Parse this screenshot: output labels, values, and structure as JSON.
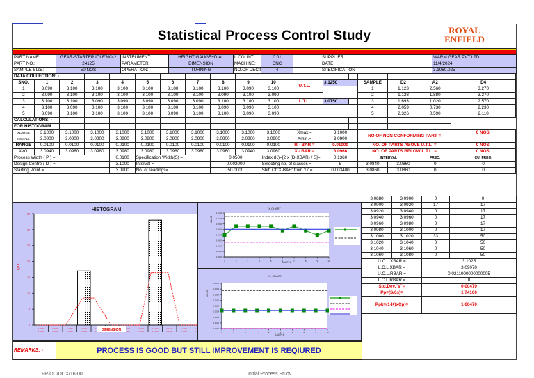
{
  "header": {
    "title": "Statistical Process Control Study",
    "logo_line1": "ROYAL",
    "logo_line2": "ENFIELD"
  },
  "info": {
    "part_name_label": "PART NAME:",
    "part_name": "GEAR-STARTER IDLE'NO-2",
    "part_no_label": "PART NO.:",
    "part_no": "24125",
    "sample_size_label": "SAMPLE SIZE:",
    "sample_size": "50 NOS",
    "instrument_label": "INSTRUMENT:",
    "instrument": "HEIGHT GAUGE+DIAL",
    "parameter_label": "PARAMETER:",
    "parameter": "DIMENSION",
    "operation_label": "OPERATION:",
    "operation": "TURNING",
    "lcount_label": "L.COUNT",
    "lcount": "0.01",
    "machine_label": "MACHINE:",
    "machine": "CNC",
    "decimals_label": "NO.OF DECIMALS:",
    "decimals": "4",
    "supplier_label": "SUPPLIER",
    "supplier": "WARM GEAR PVT LTD",
    "date_label": "DATE",
    "date": "11/4/2024",
    "spec_label": "SPECIFICATION",
    "spec": "3.10±0.025"
  },
  "data_collection": {
    "label": "DATA COLLECTION: -",
    "sno_label": "SNO.",
    "columns": [
      "1",
      "2",
      "3",
      "4",
      "5",
      "6",
      "7",
      "8",
      "9",
      "10"
    ],
    "rows": [
      {
        "sno": "1",
        "values": [
          "3.090",
          "3.100",
          "3.100",
          "3.100",
          "3.100",
          "3.100",
          "3.100",
          "3.100",
          "3.090",
          "3.100"
        ]
      },
      {
        "sno": "2",
        "values": [
          "3.090",
          "3.100",
          "3.100",
          "3.100",
          "3.100",
          "3.100",
          "3.100",
          "3.090",
          "3.100",
          "3.090"
        ]
      },
      {
        "sno": "3",
        "values": [
          "3.100",
          "3.100",
          "3.090",
          "3.090",
          "3.090",
          "3.090",
          "3.090",
          "3.100",
          "3.100",
          "3.100"
        ]
      },
      {
        "sno": "4",
        "values": [
          "3.100",
          "3.090",
          "3.100",
          "3.100",
          "3.100",
          "3.100",
          "3.100",
          "3.090",
          "3.090",
          "3.100"
        ]
      },
      {
        "sno": "5",
        "values": [
          "3.090",
          "3.100",
          "3.100",
          "3.100",
          "3.100",
          "3.090",
          "3.100",
          "3.100",
          "3.090",
          "3.090"
        ]
      }
    ],
    "utl_label": "U.T.L.",
    "utl": "3.1250",
    "ltl_label": "L.T.L.",
    "ltl": "3.0750"
  },
  "constants": {
    "headers": [
      "SAMPLE",
      "D2",
      "A2",
      "D4"
    ],
    "rows": [
      [
        "1",
        "1.123",
        "2.560",
        "3.270"
      ],
      [
        "2",
        "1.128",
        "1.880",
        "3.270"
      ],
      [
        "3",
        "1.693",
        "1.020",
        "2.570"
      ],
      [
        "4",
        "2.059",
        "0.730",
        "2.230"
      ],
      [
        "5",
        "2.326",
        "0.590",
        "2.110"
      ]
    ]
  },
  "calculations": {
    "label": "CALCULATIONS: -",
    "histogram_label": "FOR HISTOGRAM",
    "xlarge_label": "XLARGE",
    "xsmall_label": "XSMALL",
    "range_label": "RANGE",
    "avg_label": "AVG.",
    "xlarge": [
      "3.1000",
      "3.1000",
      "3.1000",
      "3.1000",
      "3.1000",
      "3.1000",
      "3.1000",
      "3.1000",
      "3.1000",
      "3.1000"
    ],
    "xsmall": [
      "3.0900",
      "3.0900",
      "3.0900",
      "3.0900",
      "3.0900",
      "3.0900",
      "3.0900",
      "3.0900",
      "3.0900",
      "3.0900"
    ],
    "range": [
      "0.0100",
      "0.0100",
      "0.0100",
      "0.0100",
      "0.0100",
      "0.0100",
      "0.0100",
      "0.0100",
      "0.0100",
      "0.0100"
    ],
    "avg": [
      "3.0940",
      "3.0980",
      "3.0980",
      "3.0980",
      "3.0980",
      "3.0960",
      "3.0980",
      "3.0960",
      "3.0940",
      "3.0960"
    ],
    "xmax_label": "Xmax.=",
    "xmax": "3.1000",
    "xmin_label": "Xmin.=",
    "xmin": "3.0900",
    "rbar_label": "R - BAR =",
    "rbar": "0.01000",
    "xbar_label": "X - BAR =",
    "xbar": "3.0966",
    "nonconf_label": "NO.OF NON CONFORMING PART =",
    "nonconf": "0 NOS.",
    "above_label": "NO. OF PARTS ABOVE U.T.L. =",
    "above": "0 NOS.",
    "below_label": "NO. OF PARTS BELOW L.T.L. =",
    "below": "0 NOS.",
    "pw_label": "Process Width ( P ) =",
    "pw": "0.0100",
    "sw_label": "Specification Width(S) =",
    "sw": "0.0500",
    "index_label": "Index (K)=[2 x (D-XBAR) / S]=",
    "index": "0.1360",
    "dc_label": "Design Centre ( D ) =",
    "dc": "3.1000",
    "interval_label": "Interval =",
    "interval": "0.002000",
    "classes_label": "Selecting no. of classes =",
    "classes": "5",
    "sp_label": "Starting Point =",
    "sp": "3.0900",
    "readings_label": "No. of readings=",
    "readings": "50.0000",
    "shift_label": "Shift Of 'X-BAR' from 'D' =",
    "shift": "0.003400"
  },
  "frequency": {
    "headers": [
      "INTERVAL",
      "FREQ.",
      "CU. FREQ."
    ],
    "rows": [
      [
        "3.0840",
        "3.0860",
        "0",
        "0"
      ],
      [
        "3.0860",
        "3.0880",
        "0",
        "0"
      ],
      [
        "3.0880",
        "3.0900",
        "0",
        "0"
      ],
      [
        "3.0900",
        "3.0920",
        "17",
        "17"
      ],
      [
        "3.0920",
        "3.0940",
        "0",
        "17"
      ],
      [
        "3.0940",
        "3.0960",
        "0",
        "17"
      ],
      [
        "3.0960",
        "3.0980",
        "0",
        "17"
      ],
      [
        "3.0980",
        "3.1000",
        "0",
        "17"
      ],
      [
        "3.1000",
        "3.1020",
        "33",
        "50"
      ],
      [
        "3.1020",
        "3.1040",
        "0",
        "50"
      ],
      [
        "3.1040",
        "3.1060",
        "0",
        "50"
      ],
      [
        "3.1060",
        "3.1080",
        "0",
        "50"
      ]
    ]
  },
  "limits": {
    "ucl_x_label": "U.C.L.XBAR =",
    "ucl_x": "3.1025",
    "lcl_x_label": "L.C.L.XBAR =",
    "lcl_x": "3.09070",
    "ucl_r_label": "U.C.L.RBAR =",
    "ucl_r": "0.0211000000000005",
    "lcl_r_label": "L.C.L.RBAR =",
    "lcl_r": "0",
    "std_label": "Std.Dev.\"s\"=",
    "std": "0.00479",
    "pp_label": "Pp=(S/6s)=",
    "pp": "1.74160",
    "ppk_label": "Ppk=(1-K)xCp)=",
    "ppk": "1.60470"
  },
  "remarks": {
    "label": "REMARKS: -",
    "text": "PROCESS IS GOOD BUT STILL IMPROVEMENT IS REQIURED"
  },
  "footer": {
    "left": "FR/QC/DOX/16-00",
    "center": "Initial Process Study"
  },
  "chart_data": [
    {
      "type": "bar",
      "title": "HISTOGRAM",
      "xlabel": "DIMENSION",
      "ylabel": "QTY",
      "ylim": [
        0,
        35
      ],
      "yticks": [
        0,
        5,
        10,
        15,
        20,
        25,
        30,
        35
      ],
      "categories": [
        "3.0840-3.0860",
        "3.0860-3.0880",
        "3.0880-3.0900",
        "3.0900-3.0920",
        "3.0920-3.0940",
        "3.0940-3.0960",
        "3.0960-3.0980",
        "3.0980-3.1000",
        "3.1000-3.1020",
        "3.1020-3.1040",
        "3.1040-3.1060",
        "3.1060-3.1080"
      ],
      "values": [
        0,
        0,
        0,
        17,
        0,
        0,
        0,
        0,
        33,
        0,
        0,
        0
      ],
      "curve": [
        0,
        0,
        0,
        8.5,
        8.5,
        0,
        0,
        0,
        16.5,
        16.5,
        0,
        0
      ]
    },
    {
      "type": "line",
      "title": "X-CHART",
      "xlabel": "SAMPLE",
      "ylabel": "VALUE",
      "x": [
        1,
        2,
        3,
        4,
        5,
        6,
        7,
        8,
        9,
        10
      ],
      "ylim": [
        3.084,
        3.104
      ],
      "series": [
        {
          "name": "AVG",
          "values": [
            3.094,
            3.098,
            3.098,
            3.098,
            3.098,
            3.096,
            3.098,
            3.096,
            3.094,
            3.096
          ]
        },
        {
          "name": "UCL",
          "values": [
            3.1025,
            3.1025,
            3.1025,
            3.1025,
            3.1025,
            3.1025,
            3.1025,
            3.1025,
            3.1025,
            3.1025
          ]
        },
        {
          "name": "XBAR",
          "values": [
            3.0966,
            3.0966,
            3.0966,
            3.0966,
            3.0966,
            3.0966,
            3.0966,
            3.0966,
            3.0966,
            3.0966
          ]
        },
        {
          "name": "LCL",
          "values": [
            3.0907,
            3.0907,
            3.0907,
            3.0907,
            3.0907,
            3.0907,
            3.0907,
            3.0907,
            3.0907,
            3.0907
          ]
        }
      ]
    },
    {
      "type": "line",
      "title": "R - CHART",
      "xlabel": "SAMPLE",
      "ylabel": "VALUE",
      "x": [
        1,
        2,
        3,
        4,
        5,
        6,
        7,
        8,
        9,
        10
      ],
      "ylim": [
        0,
        0.025
      ],
      "series": [
        {
          "name": "RANGE",
          "values": [
            0.01,
            0.01,
            0.01,
            0.01,
            0.01,
            0.01,
            0.01,
            0.01,
            0.01,
            0.01
          ]
        },
        {
          "name": "UCL",
          "values": [
            0.0211,
            0.0211,
            0.0211,
            0.0211,
            0.0211,
            0.0211,
            0.0211,
            0.0211,
            0.0211,
            0.0211
          ]
        },
        {
          "name": "LCL",
          "values": [
            0,
            0,
            0,
            0,
            0,
            0,
            0,
            0,
            0,
            0
          ]
        },
        {
          "name": "RBAR",
          "values": [
            0.01,
            0.01,
            0.01,
            0.01,
            0.01,
            0.01,
            0.01,
            0.01,
            0.01,
            0.01
          ]
        }
      ]
    }
  ]
}
